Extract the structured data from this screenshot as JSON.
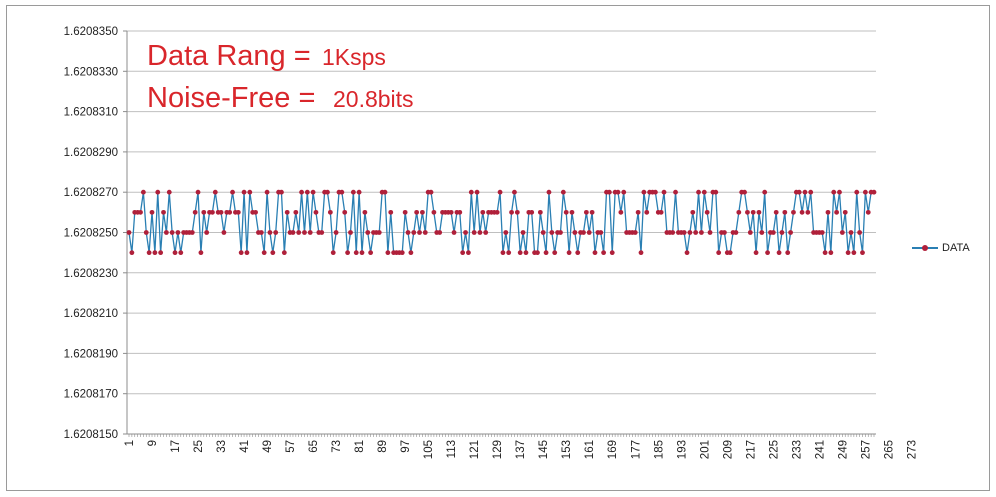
{
  "annotations": {
    "line1_label": "Data Rang =",
    "line1_value": "1Ksps",
    "line2_label": "Noise-Free =",
    "line2_value": "20.8bits"
  },
  "colors": {
    "line": "#2a7fb3",
    "marker": "#b0203a",
    "annotation": "#d9262b",
    "grid": "#bfbfbf",
    "axis": "#8c8c8c"
  },
  "chart_data": {
    "type": "line",
    "title": "",
    "xlabel": "",
    "ylabel": "",
    "ylim": [
      1.620815,
      1.620835
    ],
    "yticks": [
      1.620815,
      1.620817,
      1.620819,
      1.620821,
      1.620823,
      1.620825,
      1.620827,
      1.620829,
      1.620831,
      1.620833,
      1.620835
    ],
    "ytick_labels": [
      "1.6208150",
      "1.6208170",
      "1.6208190",
      "1.6208210",
      "1.6208230",
      "1.6208250",
      "1.6208270",
      "1.6208290",
      "1.6208310",
      "1.6208330",
      "1.6208350"
    ],
    "xtick_labels": [
      "1",
      "9",
      "17",
      "25",
      "33",
      "41",
      "49",
      "57",
      "65",
      "73",
      "81",
      "89",
      "97",
      "105",
      "113",
      "121",
      "129",
      "137",
      "145",
      "153",
      "161",
      "169",
      "177",
      "185",
      "193",
      "201",
      "209",
      "217",
      "225",
      "233",
      "241",
      "249",
      "257",
      "265",
      "273"
    ],
    "grid": true,
    "legend": "right",
    "series": [
      {
        "name": "DATA",
        "values": [
          1.620825,
          1.620824,
          1.620826,
          1.620826,
          1.620826,
          1.620827,
          1.620825,
          1.620824,
          1.620826,
          1.620824,
          1.620827,
          1.620824,
          1.620826,
          1.620825,
          1.620827,
          1.620825,
          1.620824,
          1.620825,
          1.620824,
          1.620825,
          1.620825,
          1.620825,
          1.620825,
          1.620826,
          1.620827,
          1.620824,
          1.620826,
          1.620825,
          1.620826,
          1.620826,
          1.620827,
          1.620826,
          1.620826,
          1.620825,
          1.620826,
          1.620826,
          1.620827,
          1.620826,
          1.620826,
          1.620824,
          1.620827,
          1.620824,
          1.620827,
          1.620826,
          1.620826,
          1.620825,
          1.620825,
          1.620824,
          1.620827,
          1.620825,
          1.620824,
          1.620825,
          1.620827,
          1.620827,
          1.620824,
          1.620826,
          1.620825,
          1.620825,
          1.620826,
          1.620825,
          1.620827,
          1.620825,
          1.620827,
          1.620825,
          1.620827,
          1.620826,
          1.620825,
          1.620825,
          1.620827,
          1.620827,
          1.620826,
          1.620824,
          1.620825,
          1.620827,
          1.620827,
          1.620826,
          1.620824,
          1.620825,
          1.620827,
          1.620824,
          1.620827,
          1.620824,
          1.620826,
          1.620825,
          1.620824,
          1.620825,
          1.620825,
          1.620825,
          1.620827,
          1.620827,
          1.620824,
          1.620826,
          1.620824,
          1.620824,
          1.620824,
          1.620824,
          1.620826,
          1.620825,
          1.620824,
          1.620825,
          1.620826,
          1.620825,
          1.620826,
          1.620825,
          1.620827,
          1.620827,
          1.620826,
          1.620825,
          1.620825,
          1.620826,
          1.620826,
          1.620826,
          1.620826,
          1.620825,
          1.620826,
          1.620826,
          1.620824,
          1.620825,
          1.620824,
          1.620827,
          1.620825,
          1.620827,
          1.620825,
          1.620826,
          1.620825,
          1.620826,
          1.620826,
          1.620826,
          1.620826,
          1.620827,
          1.620824,
          1.620825,
          1.620824,
          1.620826,
          1.620827,
          1.620826,
          1.620824,
          1.620825,
          1.620824,
          1.620826,
          1.620826,
          1.620824,
          1.620824,
          1.620826,
          1.620825,
          1.620824,
          1.620827,
          1.620825,
          1.620824,
          1.620825,
          1.620825,
          1.620827,
          1.620826,
          1.620824,
          1.620826,
          1.620825,
          1.620824,
          1.620825,
          1.620825,
          1.620826,
          1.620825,
          1.620826,
          1.620824,
          1.620825,
          1.620825,
          1.620824,
          1.620827,
          1.620827,
          1.620824,
          1.620827,
          1.620827,
          1.620826,
          1.620827,
          1.620825,
          1.620825,
          1.620825,
          1.620825,
          1.620826,
          1.620824,
          1.620827,
          1.620826,
          1.620827,
          1.620827,
          1.620827,
          1.620826,
          1.620826,
          1.620827,
          1.620825,
          1.620825,
          1.620825,
          1.620827,
          1.620825,
          1.620825,
          1.620825,
          1.620824,
          1.620825,
          1.620826,
          1.620825,
          1.620827,
          1.620825,
          1.620827,
          1.620826,
          1.620825,
          1.620827,
          1.620827,
          1.620824,
          1.620825,
          1.620825,
          1.620824,
          1.620824,
          1.620825,
          1.620825,
          1.620826,
          1.620827,
          1.620827,
          1.620826,
          1.620825,
          1.620826,
          1.620824,
          1.620826,
          1.620825,
          1.620827,
          1.620824,
          1.620825,
          1.620825,
          1.620826,
          1.620824,
          1.620825,
          1.620826,
          1.620824,
          1.620825,
          1.620826,
          1.620827,
          1.620827,
          1.620826,
          1.620827,
          1.620826,
          1.620827,
          1.620825,
          1.620825,
          1.620825,
          1.620825,
          1.620824,
          1.620826,
          1.620824,
          1.620827,
          1.620826,
          1.620827,
          1.620825,
          1.620826,
          1.620824,
          1.620825,
          1.620824,
          1.620827,
          1.620825,
          1.620824,
          1.620827,
          1.620826,
          1.620827,
          1.620827
        ]
      }
    ]
  }
}
